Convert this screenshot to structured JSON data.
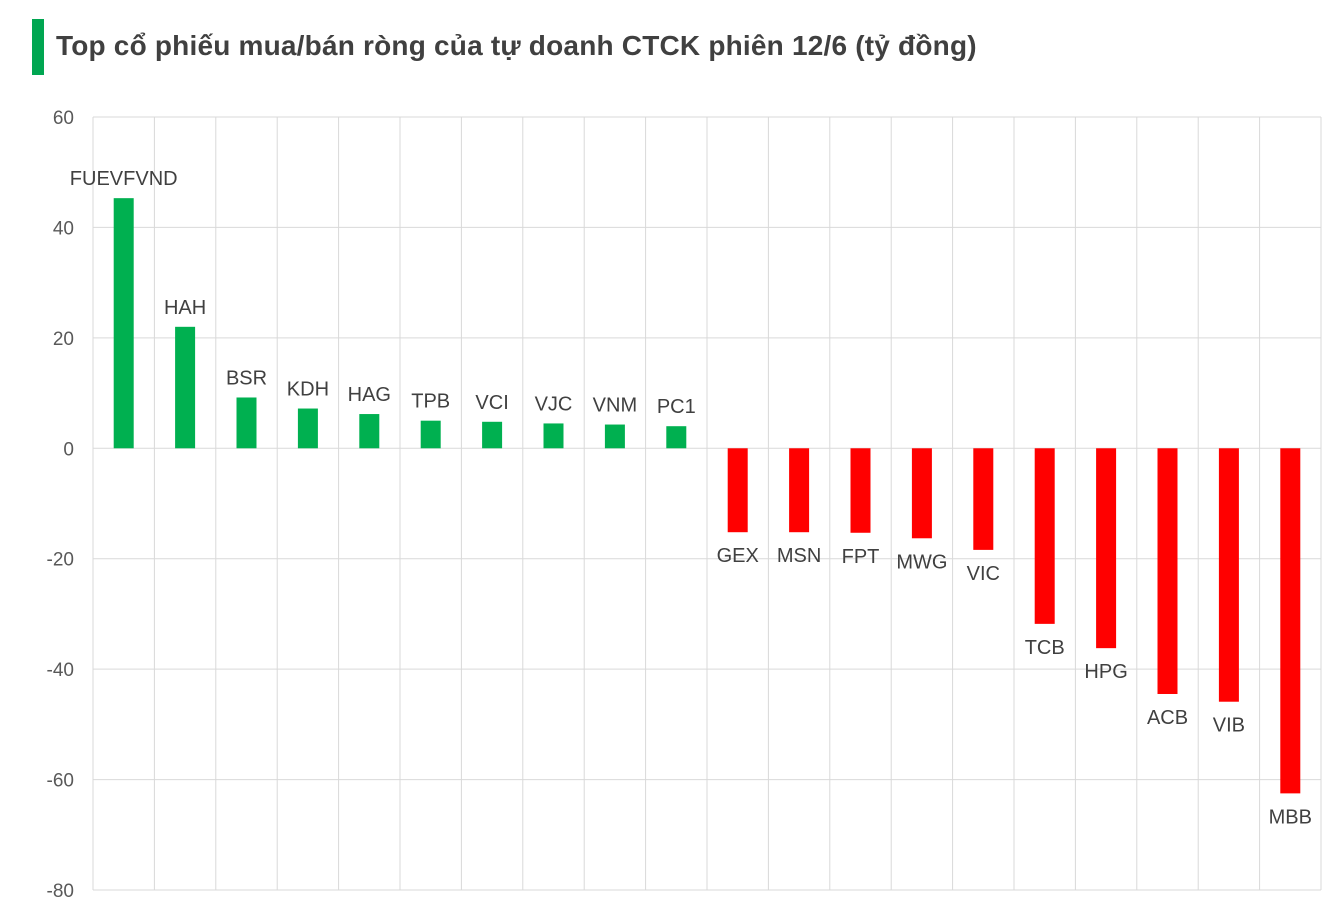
{
  "header": {
    "title": "Top cổ phiếu mua/bán ròng của tự doanh CTCK phiên 12/6 (tỷ đồng)"
  },
  "colors": {
    "accent": "#00a651",
    "positive": "#00b050",
    "negative": "#ff0000",
    "grid": "#d9d9d9"
  },
  "chart_data": {
    "type": "bar",
    "title": "Top cổ phiếu mua/bán ròng của tự doanh CTCK phiên 12/6 (tỷ đồng)",
    "xlabel": "",
    "ylabel": "",
    "ylim": [
      -80,
      60
    ],
    "yticks": [
      60,
      40,
      20,
      0,
      -20,
      -40,
      -60,
      -80
    ],
    "grid": true,
    "legend": "none",
    "categories": [
      "FUEVFVND",
      "HAH",
      "BSR",
      "KDH",
      "HAG",
      "TPB",
      "VCI",
      "VJC",
      "VNM",
      "PC1",
      "GEX",
      "MSN",
      "FPT",
      "MWG",
      "VIC",
      "TCB",
      "HPG",
      "ACB",
      "VIB",
      "MBB"
    ],
    "values": [
      45.3,
      22.0,
      9.2,
      7.2,
      6.2,
      5.0,
      4.8,
      4.5,
      4.3,
      4.0,
      -15.2,
      -15.2,
      -15.3,
      -16.3,
      -18.4,
      -31.8,
      -36.2,
      -44.5,
      -45.9,
      -62.5
    ]
  }
}
